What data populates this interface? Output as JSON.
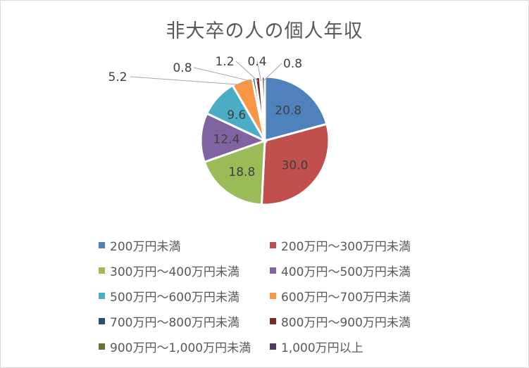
{
  "chart_data": {
    "type": "pie",
    "title": "非大卒の人の個人年収",
    "categories": [
      "200万円未満",
      "200万円～300万円未満",
      "300万円～400万円未満",
      "400万円～500万円未満",
      "500万円～600万円未満",
      "600万円～700万円未満",
      "700万円～800万円未満",
      "800万円～900万円未満",
      "900万円～1,000万円未満",
      "1,000万円以上"
    ],
    "values": [
      20.8,
      30.0,
      18.8,
      12.4,
      9.6,
      5.2,
      0.8,
      1.2,
      0.4,
      0.8
    ],
    "data_labels": [
      "20.8",
      "30.0",
      "18.8",
      "12.4",
      "9.6",
      "5.2",
      "0.8",
      "1.2",
      "0.4",
      "0.8"
    ],
    "colors": [
      "#4f81bd",
      "#c0504d",
      "#9bbb59",
      "#8064a2",
      "#4bacc6",
      "#f79646",
      "#2c4d75",
      "#772c2a",
      "#5f7530",
      "#4d3b62"
    ],
    "legend_position": "bottom",
    "start_angle_deg": 0,
    "direction": "clockwise"
  },
  "legend": {
    "items": [
      {
        "label": "200万円未満",
        "color": "#4f81bd"
      },
      {
        "label": "200万円～300万円未満",
        "color": "#c0504d"
      },
      {
        "label": "300万円～400万円未満",
        "color": "#9bbb59"
      },
      {
        "label": "400万円～500万円未満",
        "color": "#8064a2"
      },
      {
        "label": "500万円～600万円未満",
        "color": "#4bacc6"
      },
      {
        "label": "600万円～700万円未満",
        "color": "#f79646"
      },
      {
        "label": "700万円～800万円未満",
        "color": "#2c4d75"
      },
      {
        "label": "800万円～900万円未満",
        "color": "#772c2a"
      },
      {
        "label": "900万円～1,000万円未満",
        "color": "#5f7530"
      },
      {
        "label": "1,000万円以上",
        "color": "#4d3b62"
      }
    ]
  }
}
